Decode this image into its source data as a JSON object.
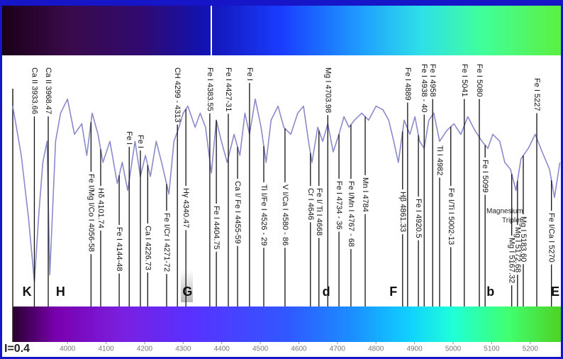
{
  "chart_data": {
    "type": "line",
    "intensity_label": "I=0.4",
    "color": "#8a8acc",
    "xlim": [
      3858,
      5285
    ],
    "ylim": [
      0.4,
      1.05
    ],
    "xticks": [
      4000,
      4100,
      4200,
      4300,
      4400,
      4500,
      4600,
      4700,
      4800,
      4900,
      5000,
      5100,
      5200
    ],
    "x": [
      3858,
      3880,
      3899,
      3914,
      3926,
      3936,
      3947,
      3954,
      3969,
      3982,
      4000,
      4018,
      4037,
      4050,
      4064,
      4079,
      4092,
      4110,
      4129,
      4142,
      4156,
      4175,
      4189,
      4202,
      4215,
      4230,
      4244,
      4263,
      4276,
      4289,
      4300,
      4312,
      4331,
      4344,
      4358,
      4373,
      4386,
      4399,
      4414,
      4432,
      4447,
      4460,
      4472,
      4487,
      4502,
      4515,
      4528,
      4546,
      4561,
      4579,
      4597,
      4612,
      4625,
      4634,
      4649,
      4662,
      4675,
      4689,
      4704,
      4717,
      4730,
      4744,
      4763,
      4781,
      4800,
      4818,
      4833,
      4846,
      4858,
      4873,
      4888,
      4901,
      4913,
      4925,
      4937,
      4950,
      4965,
      4983,
      5002,
      5020,
      5038,
      5057,
      5075,
      5090,
      5103,
      5121,
      5134,
      5149,
      5163,
      5176,
      5195,
      5213,
      5231,
      5250,
      5263,
      5277
    ],
    "values": [
      0.97,
      0.83,
      0.65,
      0.47,
      0.67,
      0.81,
      0.87,
      0.49,
      0.87,
      0.95,
      0.99,
      0.89,
      0.92,
      0.83,
      0.95,
      0.89,
      0.81,
      0.87,
      0.75,
      0.81,
      0.73,
      0.87,
      0.77,
      0.83,
      0.77,
      0.87,
      0.81,
      0.72,
      0.87,
      0.91,
      0.95,
      0.97,
      0.91,
      0.95,
      0.91,
      0.78,
      0.93,
      0.87,
      0.81,
      0.89,
      0.83,
      0.95,
      0.89,
      0.99,
      0.91,
      0.81,
      0.93,
      0.97,
      0.91,
      0.89,
      0.95,
      0.97,
      0.87,
      0.81,
      0.91,
      0.87,
      0.92,
      0.84,
      0.89,
      0.94,
      0.91,
      0.93,
      0.95,
      0.93,
      0.97,
      0.96,
      0.93,
      0.87,
      0.81,
      0.93,
      0.89,
      0.94,
      0.87,
      0.85,
      0.93,
      0.95,
      0.87,
      0.9,
      0.92,
      0.89,
      0.94,
      0.9,
      0.87,
      0.85,
      0.89,
      0.87,
      0.81,
      0.79,
      0.73,
      0.82,
      0.85,
      0.89,
      0.84,
      0.79,
      0.71,
      0.81
    ],
    "annotations": [
      {
        "text": "Ca II 3933.66",
        "x": 3914
      },
      {
        "text": "Ca II 3968.47",
        "x": 3950
      },
      {
        "text": "Fe I/Mg I/Co I 4056-58",
        "x": 4061
      },
      {
        "text": "Hδ 4101.74",
        "x": 4086
      },
      {
        "text": "Fe I 4144-48",
        "x": 4134
      },
      {
        "text": "Fe I",
        "x": 4160
      },
      {
        "text": "Fe I",
        "x": 4189
      },
      {
        "text": "Ca I 4226.73",
        "x": 4208
      },
      {
        "text": "Fe I/Cr I 4271-72",
        "x": 4257
      },
      {
        "text": "CH 4299 - 4313",
        "x": 4285
      },
      {
        "text": "Hγ 4340.47",
        "x": 4307
      },
      {
        "text": "Fe I 4383.55",
        "x": 4369
      },
      {
        "text": "Fe I 4404.75",
        "x": 4386
      },
      {
        "text": "Fe I 4427-31",
        "x": 4417
      },
      {
        "text": "Ca I/ Fe I 4455-59",
        "x": 4441
      },
      {
        "text": "Fe I",
        "x": 4472
      },
      {
        "text": "Ti I/Fe I 4526 - 29",
        "x": 4509
      },
      {
        "text": "V I/Ca I 4580 - 86",
        "x": 4564
      },
      {
        "text": "Cr I 4646",
        "x": 4630
      },
      {
        "text": "Mg I 4703.98",
        "x": 4675
      },
      {
        "text": "Fe I/ Ti I 4668",
        "x": 4652
      },
      {
        "text": "Fe I 4734 - 36",
        "x": 4704
      },
      {
        "text": "Fe I/Mn I 4767 - 68",
        "x": 4735
      },
      {
        "text": "Mn I 4784",
        "x": 4772
      },
      {
        "text": "Hβ 4861.33",
        "x": 4869
      },
      {
        "text": "Fe I 4889",
        "x": 4882
      },
      {
        "text": "Fe I 4920.5",
        "x": 4910
      },
      {
        "text": "Fe I 4938 - 40",
        "x": 4925
      },
      {
        "text": "Fe I 4958",
        "x": 4947
      },
      {
        "text": "Ti I 4982",
        "x": 4965
      },
      {
        "text": "Fe I/Ti I 5002-13",
        "x": 4994
      },
      {
        "text": "Fe I 5041",
        "x": 5029
      },
      {
        "text": "Fe I 5080",
        "x": 5068
      },
      {
        "text": "Fe I 5099",
        "x": 5083
      },
      {
        "text": "Mg I 5167.32",
        "x": 5152
      },
      {
        "text": "Mg I 5172.68",
        "x": 5167
      },
      {
        "text": "Mg I 5183.60",
        "x": 5182
      },
      {
        "text": "Fe I 5227",
        "x": 5217
      },
      {
        "text": "Fe I/Ca I 5270",
        "x": 5255
      }
    ],
    "fraunhofer": [
      {
        "label": "K",
        "x": 3895
      },
      {
        "label": "H",
        "x": 3982
      },
      {
        "label": "G",
        "x": 4311
      },
      {
        "label": "d",
        "x": 4671
      },
      {
        "label": "F",
        "x": 4845
      },
      {
        "label": "b",
        "x": 5097
      },
      {
        "label": "E",
        "x": 5265
      }
    ],
    "note": [
      "Magnesium",
      "Triplet"
    ]
  }
}
